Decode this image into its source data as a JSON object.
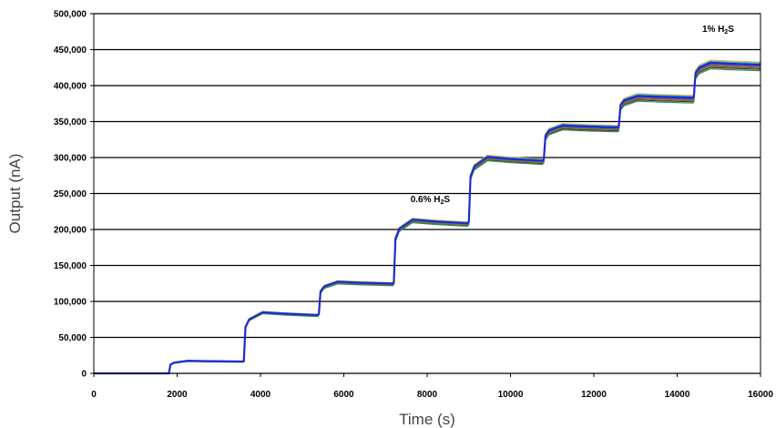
{
  "chart_data": {
    "type": "line",
    "title": "",
    "xlabel": "Time (s)",
    "ylabel": "Output (nA)",
    "xlim": [
      0,
      16000
    ],
    "ylim": [
      0,
      500000
    ],
    "x_ticks": [
      "0",
      "2000",
      "4000",
      "6000",
      "8000",
      "10000",
      "12000",
      "14000",
      "16000"
    ],
    "y_ticks": [
      "0",
      "50,000",
      "100,000",
      "150,000",
      "200,000",
      "250,000",
      "300,000",
      "350,000",
      "400,000",
      "450,000",
      "500,000"
    ],
    "grid": "horizontal",
    "annotations": [
      {
        "text": "0.6% H",
        "sub": "2",
        "tail": "S",
        "x": 7600,
        "y": 238000
      },
      {
        "text": "1% H",
        "sub": "2",
        "tail": "S",
        "x": 14600,
        "y": 475000
      }
    ],
    "step_times": [
      1800,
      3600,
      5400,
      7200,
      9000,
      10800,
      12600,
      14400
    ],
    "levels": [
      0,
      17000,
      83000,
      126000,
      211000,
      298000,
      343000,
      384000,
      430000
    ],
    "series": [
      {
        "color": "#1f2bd0",
        "offset": 0
      },
      {
        "color": "#f0b23a",
        "offset": 4000
      },
      {
        "color": "#2bb3d6",
        "offset": 2500
      },
      {
        "color": "#b03050",
        "offset": -3000
      },
      {
        "color": "#333333",
        "offset": -6000
      },
      {
        "color": "#7a7a2a",
        "offset": -4500
      },
      {
        "color": "#3a8a5a",
        "offset": -8000
      },
      {
        "color": "#777777",
        "offset": -2000
      },
      {
        "color": "#0a1aa8",
        "offset": 1000
      }
    ]
  }
}
